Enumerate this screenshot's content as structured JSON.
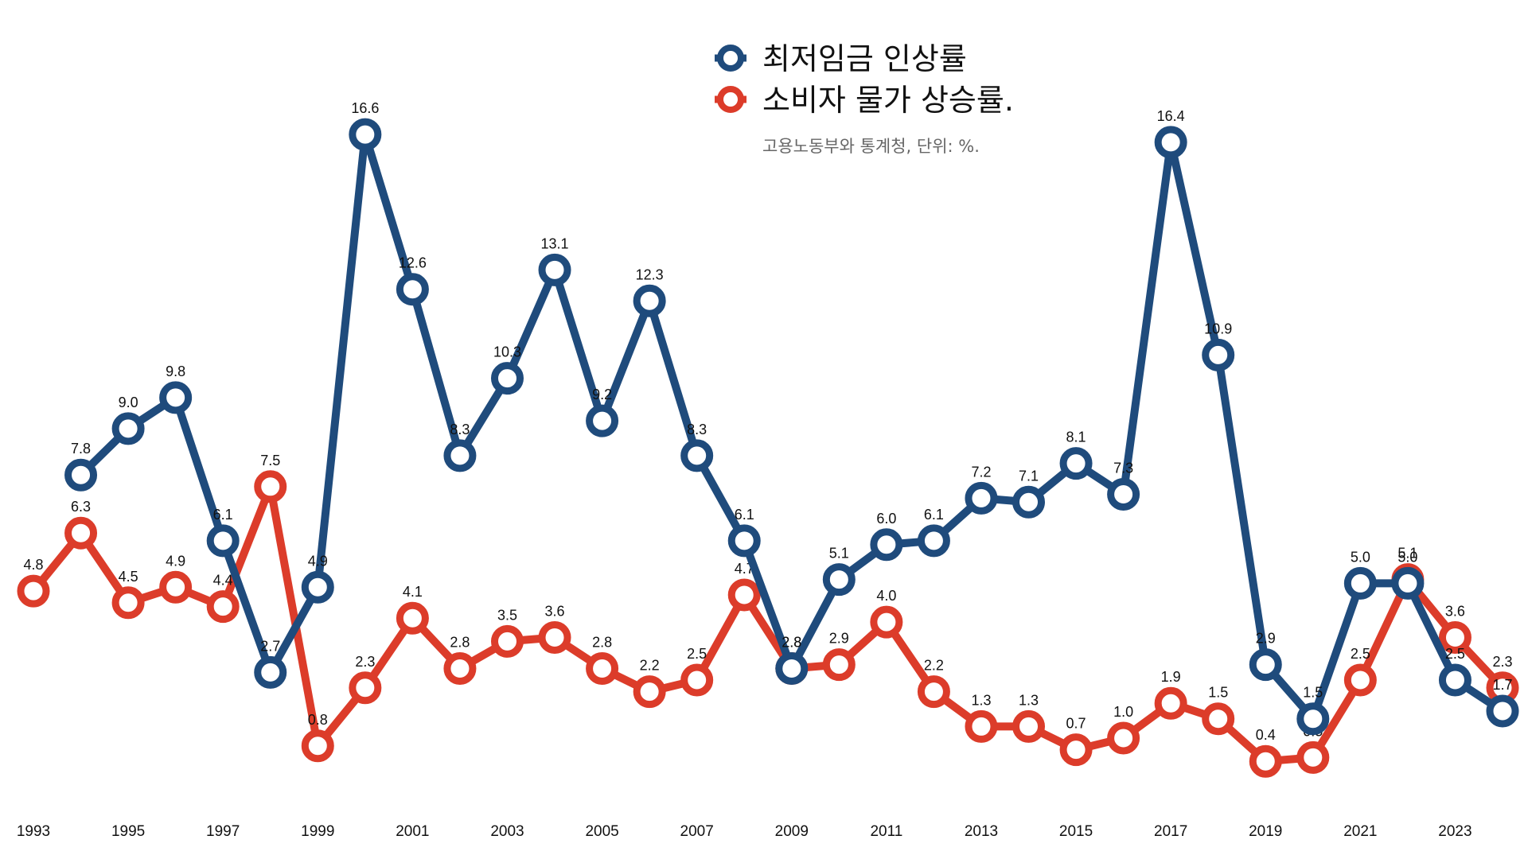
{
  "chart_data": {
    "type": "line",
    "x": [
      1993,
      1994,
      1995,
      1996,
      1997,
      1998,
      1999,
      2000,
      2001,
      2002,
      2003,
      2004,
      2005,
      2006,
      2007,
      2008,
      2009,
      2010,
      2011,
      2012,
      2013,
      2014,
      2015,
      2016,
      2017,
      2018,
      2019,
      2020,
      2021,
      2022,
      2023,
      2024
    ],
    "x_tick_labels": [
      "1993",
      "1995",
      "1997",
      "1999",
      "2001",
      "2003",
      "2005",
      "2007",
      "2009",
      "2011",
      "2013",
      "2015",
      "2017",
      "2019",
      "2021",
      "2023"
    ],
    "series": [
      {
        "name": "최저임금 인상률",
        "color": "#1f4b7c",
        "values": [
          null,
          7.8,
          9.0,
          9.8,
          6.1,
          2.7,
          4.9,
          16.6,
          12.6,
          8.3,
          10.3,
          13.1,
          9.2,
          12.3,
          8.3,
          6.1,
          2.8,
          5.1,
          6.0,
          6.1,
          7.2,
          7.1,
          8.1,
          7.3,
          16.4,
          10.9,
          2.9,
          1.5,
          5.0,
          5.0,
          2.5,
          1.7
        ]
      },
      {
        "name": "소비자 물가 상승률.",
        "color": "#dc3c2a",
        "values": [
          4.8,
          6.3,
          4.5,
          4.9,
          4.4,
          7.5,
          0.8,
          2.3,
          4.1,
          2.8,
          3.5,
          3.6,
          2.8,
          2.2,
          2.5,
          4.7,
          2.8,
          2.9,
          4.0,
          2.2,
          1.3,
          1.3,
          0.7,
          1.0,
          1.9,
          1.5,
          0.4,
          0.5,
          2.5,
          5.1,
          3.6,
          2.3
        ]
      }
    ],
    "source_note": "고용노동부와 통계청,  단위: %.",
    "ylim": [
      -0.5,
      18
    ],
    "grid": false,
    "legend_position": "top-center"
  }
}
